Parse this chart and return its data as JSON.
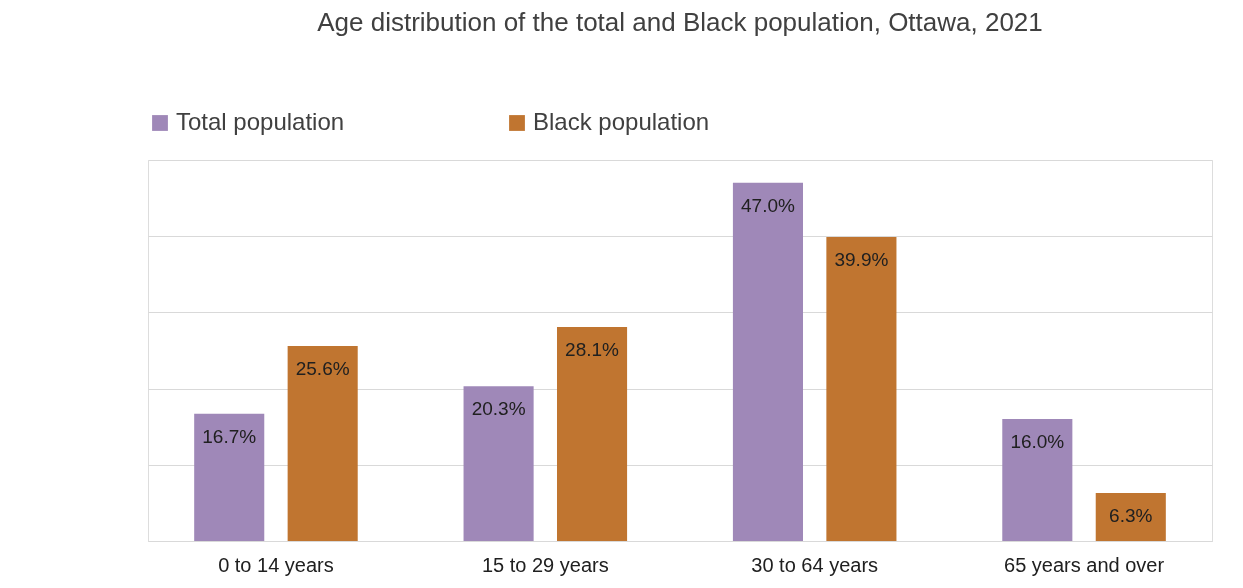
{
  "chart_data": {
    "type": "bar",
    "title": "Age distribution of the total and Black population, Ottawa, 2021",
    "categories": [
      "0 to 14 years",
      "15 to 29 years",
      "30 to 64 years",
      "65 years and over"
    ],
    "series": [
      {
        "name": "Total population",
        "color": "#9f88b8",
        "values": [
          16.7,
          20.3,
          47.0,
          16.0
        ],
        "value_labels": [
          "16.7%",
          "20.3%",
          "47.0%",
          "16.0%"
        ]
      },
      {
        "name": "Black population",
        "color": "#c07530",
        "values": [
          25.6,
          28.1,
          39.9,
          6.3
        ],
        "value_labels": [
          "25.6%",
          "28.1%",
          "39.9%",
          "6.3%"
        ]
      }
    ],
    "tick_labels": "x",
    "grid": "y",
    "legend": "top"
  }
}
